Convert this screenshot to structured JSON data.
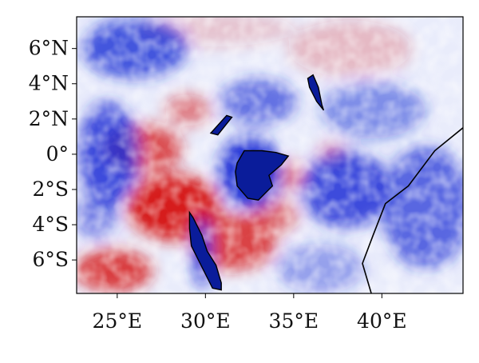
{
  "chart_data": {
    "type": "heatmap",
    "title": "",
    "xlabel": "",
    "ylabel": "",
    "xlim": [
      22.7,
      44.6
    ],
    "ylim": [
      -7.9,
      7.8
    ],
    "colormap": "diverging blue-white-red",
    "colors": {
      "negative": "#1c2fd6",
      "neutral": "#f3f4fb",
      "positive": "#d61c1c",
      "coastline": "#000000",
      "frame": "#000000"
    },
    "x_ticks": [
      {
        "value": 25,
        "label": "25°E"
      },
      {
        "value": 30,
        "label": "30°E"
      },
      {
        "value": 35,
        "label": "35°E"
      },
      {
        "value": 40,
        "label": "40°E"
      }
    ],
    "y_ticks": [
      {
        "value": 6,
        "label": "6°N"
      },
      {
        "value": 4,
        "label": "4°N"
      },
      {
        "value": 2,
        "label": "2°N"
      },
      {
        "value": 0,
        "label": "0°"
      },
      {
        "value": -2,
        "label": "2°S"
      },
      {
        "value": -4,
        "label": "4°S"
      },
      {
        "value": -6,
        "label": "6°S"
      }
    ],
    "colorbar": false,
    "legend": false,
    "grid": false,
    "anomaly_regions": [
      {
        "lon": 28.2,
        "lat": -3.0,
        "rx": 2.6,
        "ry": 1.9,
        "value": 1.0
      },
      {
        "lon": 26.5,
        "lat": 0.3,
        "rx": 2.2,
        "ry": 1.4,
        "value": 0.75
      },
      {
        "lon": 24.8,
        "lat": -6.6,
        "rx": 2.2,
        "ry": 1.2,
        "value": 0.85
      },
      {
        "lon": 31.5,
        "lat": -5.0,
        "rx": 2.5,
        "ry": 1.6,
        "value": 0.8
      },
      {
        "lon": 33.8,
        "lat": -3.5,
        "rx": 1.4,
        "ry": 1.0,
        "value": 0.6
      },
      {
        "lon": 34.7,
        "lat": -1.2,
        "rx": 1.0,
        "ry": 0.8,
        "value": 0.55
      },
      {
        "lon": 37.2,
        "lat": 0.0,
        "rx": 0.8,
        "ry": 0.6,
        "value": 0.5
      },
      {
        "lon": 29.0,
        "lat": 2.5,
        "rx": 1.3,
        "ry": 0.9,
        "value": 0.5
      },
      {
        "lon": 30.5,
        "lat": 7.1,
        "rx": 4.5,
        "ry": 1.0,
        "value": 0.2
      },
      {
        "lon": 38.2,
        "lat": 6.0,
        "rx": 3.5,
        "ry": 1.6,
        "value": 0.25
      },
      {
        "lon": 24.5,
        "lat": 0.0,
        "rx": 1.7,
        "ry": 3.0,
        "value": -0.85
      },
      {
        "lon": 26.0,
        "lat": 6.0,
        "rx": 3.0,
        "ry": 1.7,
        "value": -0.8
      },
      {
        "lon": 33.0,
        "lat": 3.0,
        "rx": 2.2,
        "ry": 1.3,
        "value": -0.65
      },
      {
        "lon": 32.5,
        "lat": -1.0,
        "rx": 1.8,
        "ry": 2.1,
        "value": -0.95
      },
      {
        "lon": 38.0,
        "lat": -2.0,
        "rx": 2.5,
        "ry": 2.2,
        "value": -0.85
      },
      {
        "lon": 42.5,
        "lat": -3.0,
        "rx": 2.5,
        "ry": 3.5,
        "value": -0.7
      },
      {
        "lon": 39.5,
        "lat": 2.5,
        "rx": 3.0,
        "ry": 1.6,
        "value": -0.5
      },
      {
        "lon": 36.5,
        "lat": -6.5,
        "rx": 2.5,
        "ry": 1.4,
        "value": -0.4
      },
      {
        "lon": 23.8,
        "lat": -3.5,
        "rx": 1.2,
        "ry": 1.3,
        "value": -0.55
      },
      {
        "lon": 29.8,
        "lat": -5.6,
        "rx": 0.5,
        "ry": 2.0,
        "value": -0.95
      }
    ]
  },
  "features": {
    "lakes": [
      {
        "name": "lake-victoria",
        "points": [
          [
            31.8,
            -0.5
          ],
          [
            32.2,
            0.2
          ],
          [
            33.2,
            0.2
          ],
          [
            34.0,
            0.1
          ],
          [
            34.7,
            -0.1
          ],
          [
            34.3,
            -0.6
          ],
          [
            33.6,
            -1.2
          ],
          [
            33.8,
            -1.8
          ],
          [
            33.0,
            -2.6
          ],
          [
            32.4,
            -2.5
          ],
          [
            31.8,
            -1.8
          ],
          [
            31.7,
            -1.0
          ]
        ]
      },
      {
        "name": "lake-tanganyika",
        "points": [
          [
            29.1,
            -3.3
          ],
          [
            29.3,
            -3.6
          ],
          [
            29.8,
            -4.6
          ],
          [
            30.1,
            -5.5
          ],
          [
            30.6,
            -6.3
          ],
          [
            30.9,
            -7.3
          ],
          [
            30.9,
            -7.7
          ],
          [
            30.4,
            -7.6
          ],
          [
            29.8,
            -6.4
          ],
          [
            29.2,
            -5.2
          ],
          [
            29.1,
            -4.2
          ]
        ]
      },
      {
        "name": "lake-albert",
        "points": [
          [
            30.3,
            1.2
          ],
          [
            31.2,
            2.2
          ],
          [
            31.5,
            2.1
          ],
          [
            30.7,
            1.1
          ]
        ]
      },
      {
        "name": "lake-turkana",
        "points": [
          [
            35.8,
            4.3
          ],
          [
            36.1,
            4.5
          ],
          [
            36.4,
            3.8
          ],
          [
            36.6,
            2.8
          ],
          [
            36.7,
            2.5
          ],
          [
            36.3,
            3.0
          ],
          [
            35.9,
            3.8
          ]
        ]
      }
    ],
    "coastline": [
      [
        44.6,
        1.5
      ],
      [
        43.0,
        0.2
      ],
      [
        41.5,
        -1.8
      ],
      [
        40.2,
        -2.8
      ],
      [
        39.5,
        -4.6
      ],
      [
        38.9,
        -6.2
      ],
      [
        39.4,
        -7.9
      ]
    ]
  }
}
